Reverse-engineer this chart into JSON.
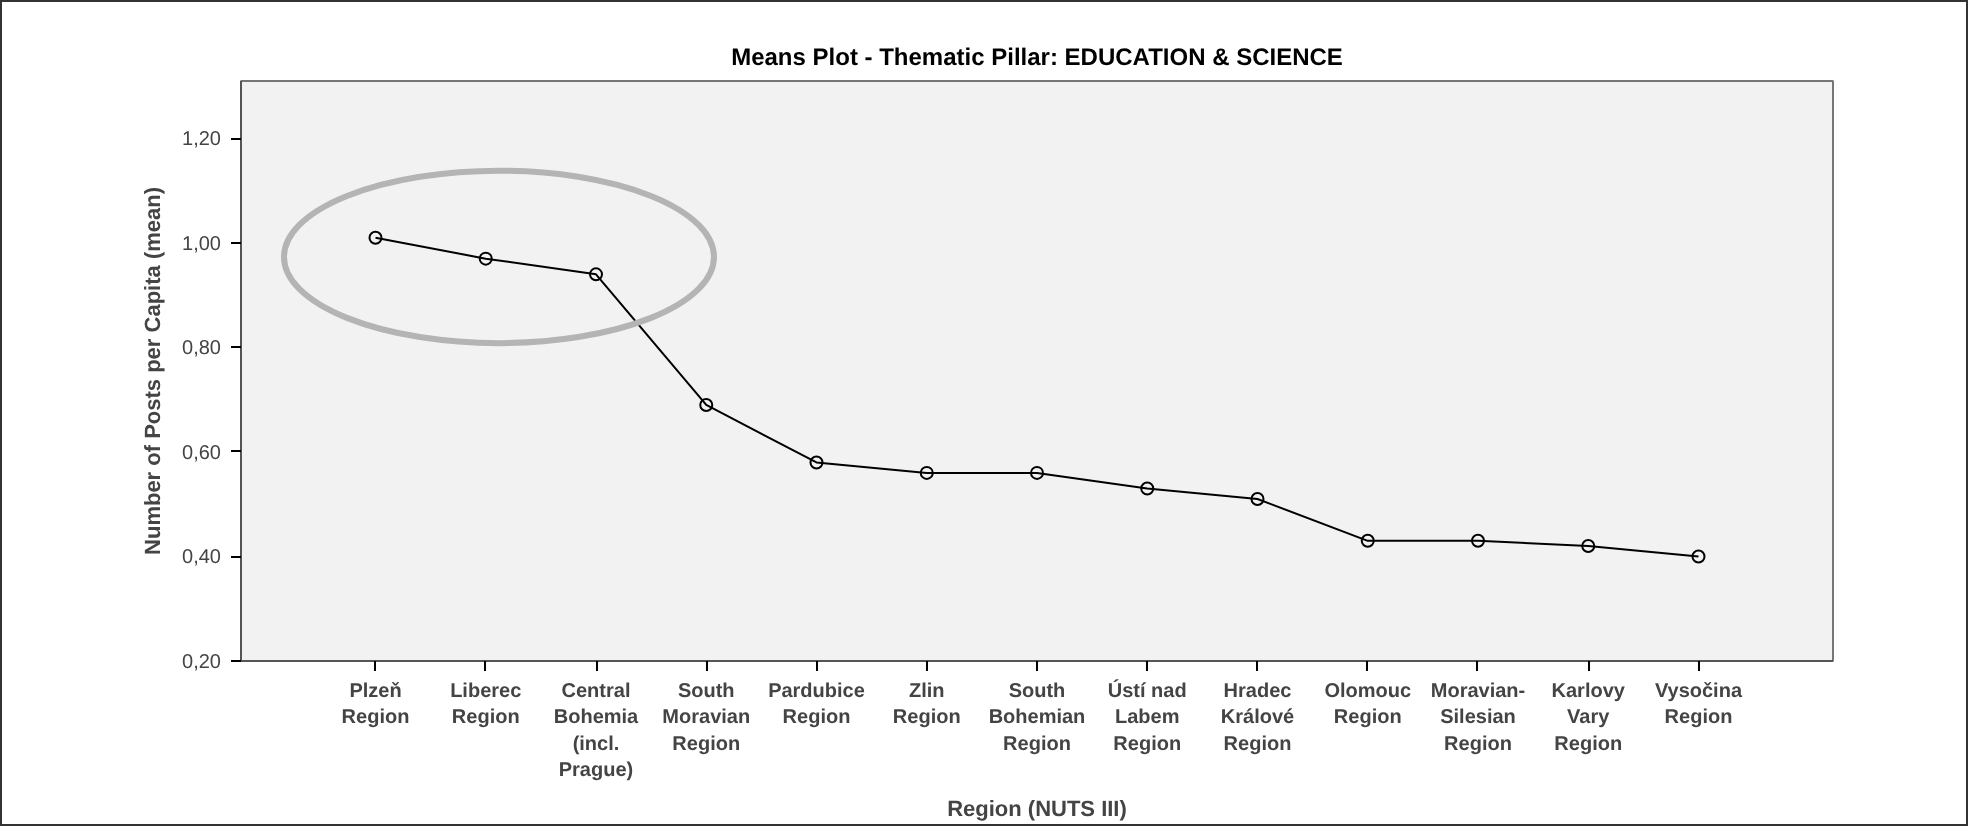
{
  "chart_data": {
    "type": "line",
    "title": "Means Plot - Thematic Pillar: EDUCATION & SCIENCE",
    "xlabel": "Region (NUTS III)",
    "ylabel": "Number of Posts per Capita (mean)",
    "categories": [
      "Plzeň Region",
      "Liberec Region",
      "Central Bohemia (incl. Prague)",
      "South Moravian Region",
      "Pardubice Region",
      "Zlin Region",
      "South Bohemian Region",
      "Ústí nad Labem Region",
      "Hradec Králové Region",
      "Olomouc Region",
      "Moravian-Silesian Region",
      "Karlovy Vary Region",
      "Vysočina Region"
    ],
    "series": [
      {
        "color": "#000000",
        "values": [
          1.01,
          0.97,
          0.94,
          0.69,
          0.58,
          0.56,
          0.56,
          0.53,
          0.51,
          0.43,
          0.43,
          0.42,
          0.4
        ]
      }
    ],
    "ylim": [
      0.2,
      1.31
    ],
    "yticks": [
      {
        "value": 0.2,
        "label": "0,20"
      },
      {
        "value": 0.4,
        "label": "0,40"
      },
      {
        "value": 0.6,
        "label": "0,60"
      },
      {
        "value": 0.8,
        "label": "0,80"
      },
      {
        "value": 1.0,
        "label": "1,00"
      },
      {
        "value": 1.2,
        "label": "1,20"
      }
    ],
    "grid": false,
    "marker": "circle",
    "line_style": "solid"
  }
}
